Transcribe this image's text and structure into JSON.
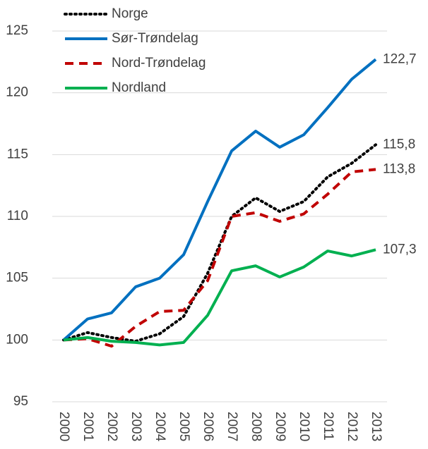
{
  "chart_data": {
    "type": "line",
    "categories": [
      "2000",
      "2001",
      "2002",
      "2003",
      "2004",
      "2005",
      "2006",
      "2007",
      "2008",
      "2009",
      "2010",
      "2011",
      "2012",
      "2013"
    ],
    "series": [
      {
        "name": "Norge",
        "color": "#000000",
        "dash": "dotted",
        "values": [
          100,
          100.6,
          100.2,
          99.9,
          100.5,
          101.9,
          105.4,
          110.0,
          111.5,
          110.4,
          111.2,
          113.2,
          114.3,
          115.8
        ],
        "value_labels": [
          null,
          null,
          null,
          null,
          null,
          null,
          null,
          null,
          null,
          null,
          null,
          null,
          null,
          "115,8"
        ]
      },
      {
        "name": "Sør-Trøndelag",
        "color": "#0070c0",
        "dash": "solid",
        "values": [
          100,
          101.7,
          102.2,
          104.3,
          105.0,
          106.9,
          111.2,
          115.3,
          116.9,
          115.6,
          116.6,
          118.8,
          121.1,
          122.7
        ],
        "value_labels": [
          null,
          null,
          null,
          null,
          null,
          null,
          null,
          null,
          null,
          null,
          null,
          null,
          null,
          "122,7"
        ]
      },
      {
        "name": "Nord-Trøndelag",
        "color": "#c00000",
        "dash": "dashed",
        "values": [
          100,
          100.1,
          99.5,
          101.1,
          102.3,
          102.4,
          104.8,
          110.0,
          110.3,
          109.6,
          110.2,
          111.8,
          113.6,
          113.8
        ],
        "value_labels": [
          null,
          null,
          null,
          null,
          null,
          null,
          null,
          null,
          null,
          null,
          null,
          null,
          null,
          "113,8"
        ]
      },
      {
        "name": "Nordland",
        "color": "#00b050",
        "dash": "solid",
        "values": [
          100,
          100.2,
          99.9,
          99.8,
          99.6,
          99.8,
          102.0,
          105.6,
          106.0,
          105.1,
          105.9,
          107.2,
          106.8,
          107.3
        ],
        "value_labels": [
          null,
          null,
          null,
          null,
          null,
          null,
          null,
          null,
          null,
          null,
          null,
          null,
          null,
          "107,3"
        ]
      }
    ],
    "ylim": [
      95,
      125
    ],
    "yticks": [
      95,
      100,
      105,
      110,
      115,
      120,
      125
    ],
    "grid": true,
    "legend": "upper left"
  }
}
